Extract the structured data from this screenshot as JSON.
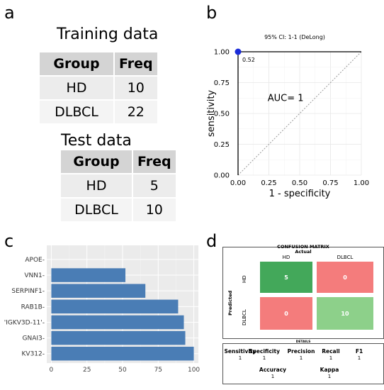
{
  "panels": {
    "a": "a",
    "b": "b",
    "c": "c",
    "d": "d"
  },
  "training": {
    "title": "Training data",
    "headers": [
      "Group",
      "Freq"
    ],
    "rows": [
      [
        "HD",
        "10"
      ],
      [
        "DLBCL",
        "22"
      ]
    ]
  },
  "test": {
    "title": "Test data",
    "headers": [
      "Group",
      "Freq"
    ],
    "rows": [
      [
        "HD",
        "5"
      ],
      [
        "DLBCL",
        "10"
      ]
    ]
  },
  "chart_data": [
    {
      "type": "line",
      "title": "95% CI: 1-1 (DeLong)",
      "xlabel": "1 - specificity",
      "ylabel": "sensitivity",
      "x": [
        0.0,
        0.0,
        1.0
      ],
      "y": [
        0.0,
        1.0,
        1.0
      ],
      "xlim": [
        0,
        1
      ],
      "ylim": [
        0,
        1
      ],
      "xticks": [
        "0.00",
        "0.25",
        "0.50",
        "0.75",
        "1.00"
      ],
      "yticks": [
        "0.00",
        "0.25",
        "0.50",
        "0.75",
        "1.00"
      ],
      "point": {
        "x": 0.0,
        "y": 1.0,
        "label": "0.52"
      },
      "annotation": "AUC=  1",
      "diagonal": true,
      "grid": true,
      "colors": {
        "curve": "#000000",
        "point": "#1a2bd9",
        "diagonal": "#999999"
      }
    },
    {
      "type": "bar",
      "orientation": "horizontal",
      "categories": [
        "APOE",
        "VNN1",
        "SERPINF1",
        "RAB1B",
        "'IGKV3D-11'",
        "GNAI3",
        "KV312"
      ],
      "values": [
        0,
        52,
        66,
        89,
        93,
        94,
        100
      ],
      "xlim": [
        0,
        100
      ],
      "xticks": [
        "0",
        "25",
        "50",
        "75",
        "100"
      ],
      "grid": true,
      "colors": {
        "bar": "#4a7db5",
        "panel": "#ebebeb"
      }
    }
  ],
  "confusion": {
    "title": "CONFUSION MATRIX",
    "actual_label": "Actual",
    "predicted_label": "Predicted",
    "col_labels": [
      "HD",
      "DLBCL"
    ],
    "row_labels": [
      "HD",
      "DLBCL"
    ],
    "cells": [
      [
        "5",
        "0"
      ],
      [
        "0",
        "10"
      ]
    ],
    "colors": [
      [
        "#43a85a",
        "#f47c7c"
      ],
      [
        "#f47c7c",
        "#8dd08a"
      ]
    ],
    "details_title": "DETAILS",
    "metrics": [
      {
        "label": "Sensitivity",
        "value": "1"
      },
      {
        "label": "Specificity",
        "value": "1"
      },
      {
        "label": "Precision",
        "value": "1"
      },
      {
        "label": "Recall",
        "value": "1"
      },
      {
        "label": "F1",
        "value": "1"
      }
    ],
    "metrics2": [
      {
        "label": "Accuracy",
        "value": "1"
      },
      {
        "label": "Kappa",
        "value": "1"
      }
    ]
  }
}
